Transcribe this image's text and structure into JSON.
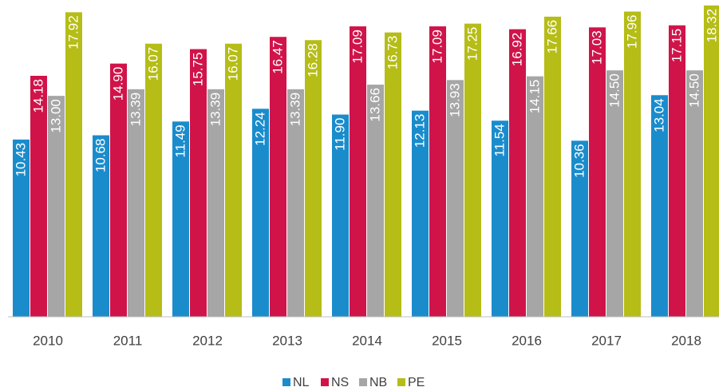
{
  "chart_data": {
    "type": "bar",
    "categories": [
      "2010",
      "2011",
      "2012",
      "2013",
      "2014",
      "2015",
      "2016",
      "2017",
      "2018"
    ],
    "series": [
      {
        "name": "NL",
        "color": "#1a8ccc",
        "values": [
          10.43,
          10.68,
          11.49,
          12.24,
          11.9,
          12.13,
          11.54,
          10.36,
          13.04
        ],
        "value_labels": [
          "10.43",
          "10.68",
          "11.49",
          "12.24",
          "11.90",
          "12.13",
          "11.54",
          "10.36",
          "13.04"
        ]
      },
      {
        "name": "NS",
        "color": "#d0144a",
        "values": [
          14.18,
          14.9,
          15.75,
          16.47,
          17.09,
          17.09,
          16.92,
          17.03,
          17.15
        ],
        "value_labels": [
          "14.18",
          "14.90",
          "15.75",
          "16.47",
          "17.09",
          "17.09",
          "16.92",
          "17.03",
          "17.15"
        ]
      },
      {
        "name": "NB",
        "color": "#a6a6a6",
        "values": [
          13.0,
          13.39,
          13.39,
          13.39,
          13.66,
          13.93,
          14.15,
          14.5,
          14.5
        ],
        "value_labels": [
          "13.00",
          "13.39",
          "13.39",
          "13.39",
          "13.66",
          "13.93",
          "14.15",
          "14.50",
          "14.50"
        ]
      },
      {
        "name": "PE",
        "color": "#b5bd16",
        "values": [
          17.92,
          16.07,
          16.07,
          16.28,
          16.73,
          17.25,
          17.66,
          17.96,
          18.32
        ],
        "value_labels": [
          "17.92",
          "16.07",
          "16.07",
          "16.28",
          "16.73",
          "17.25",
          "17.66",
          "17.96",
          "18.32"
        ]
      }
    ],
    "ylim": [
      0,
      18.5
    ],
    "legend": "bottom"
  }
}
